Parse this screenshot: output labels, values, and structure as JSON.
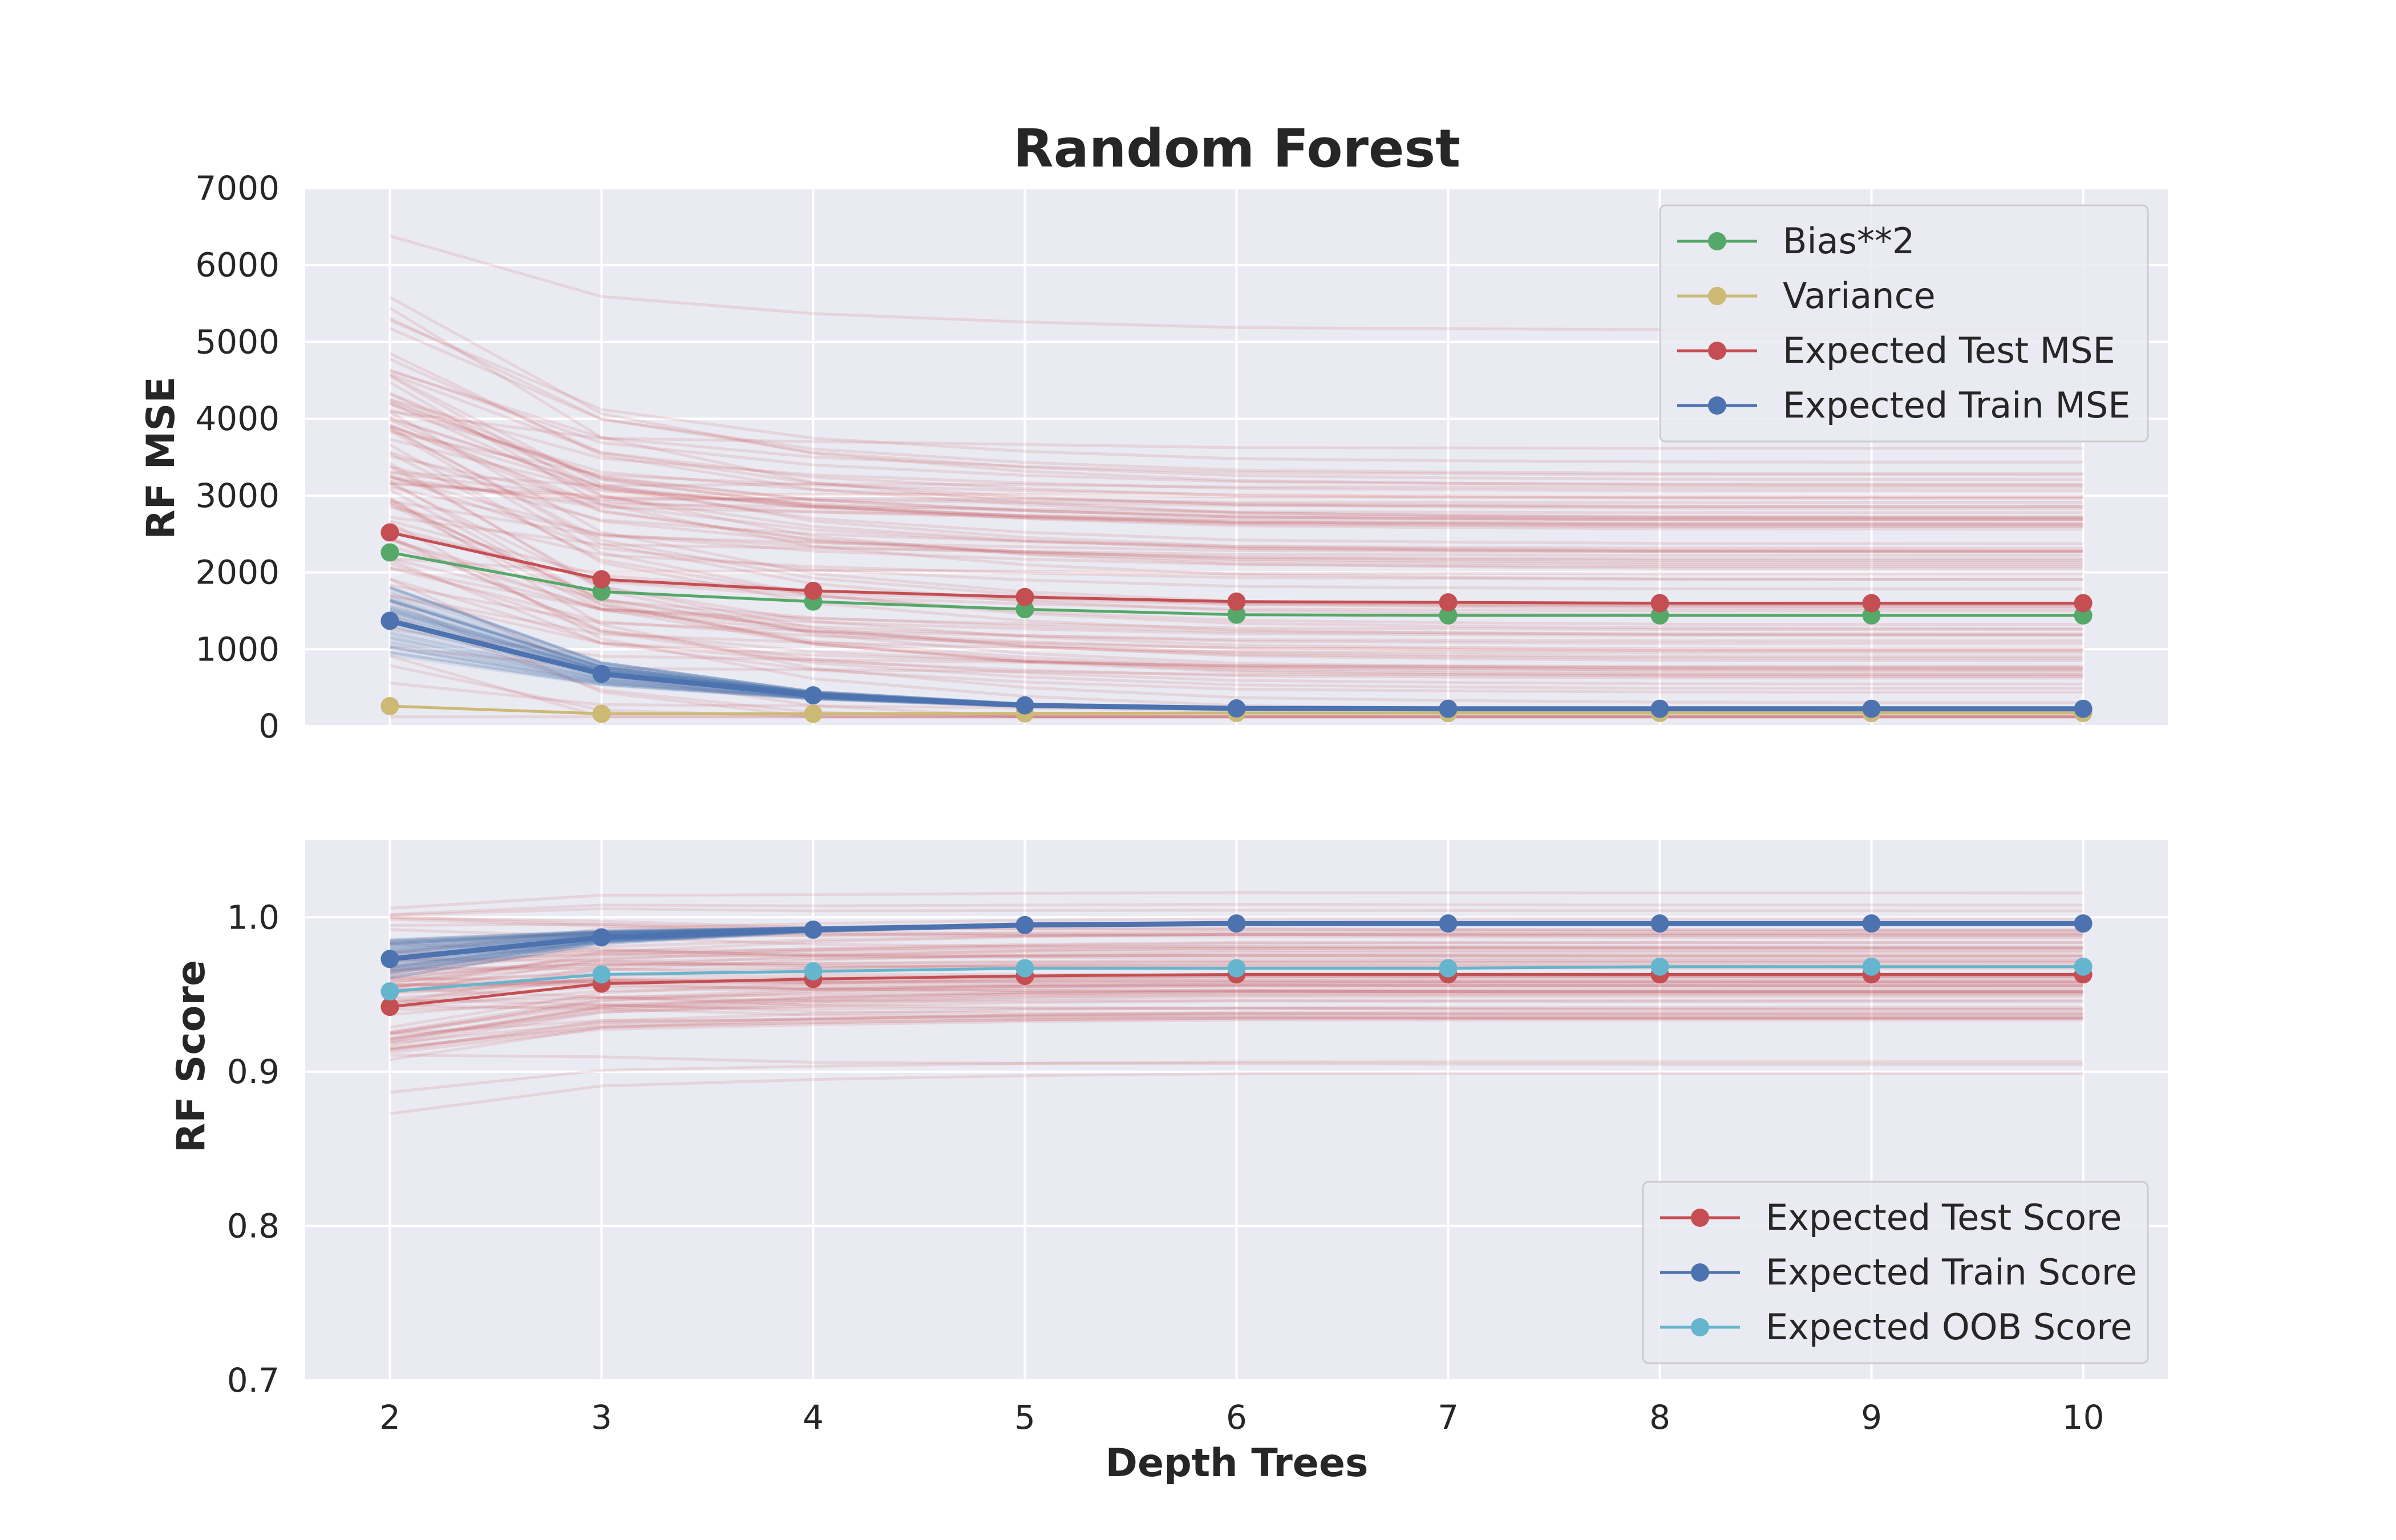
{
  "chart_data": [
    {
      "type": "line",
      "title": "Random Forest",
      "xlabel": "",
      "ylabel": "RF MSE",
      "x": [
        2,
        3,
        4,
        5,
        6,
        7,
        8,
        9,
        10
      ],
      "xlim": [
        1.6,
        10.4
      ],
      "ylim": [
        0,
        7000
      ],
      "yticks": [
        "0",
        "1000",
        "2000",
        "3000",
        "4000",
        "5000",
        "6000",
        "7000"
      ],
      "grid": true,
      "legend_position": "top-right",
      "series": [
        {
          "name": "Bias**2",
          "color": "#55a868",
          "values": [
            2260,
            1750,
            1620,
            1520,
            1450,
            1440,
            1440,
            1440,
            1440
          ]
        },
        {
          "name": "Variance",
          "color": "#ccb974",
          "values": [
            260,
            160,
            160,
            165,
            170,
            170,
            170,
            170,
            170
          ]
        },
        {
          "name": "Expected Test MSE",
          "color": "#c44e52",
          "values": [
            2520,
            1910,
            1760,
            1680,
            1620,
            1610,
            1600,
            1600,
            1600
          ]
        },
        {
          "name": "Expected Train MSE",
          "color": "#4c72b0",
          "values": [
            1370,
            680,
            400,
            270,
            230,
            225,
            225,
            225,
            225
          ]
        }
      ],
      "background_lines": {
        "test_runs_color": "#c44e52",
        "train_runs_color": "#4c72b0"
      }
    },
    {
      "type": "line",
      "title": "",
      "xlabel": "Depth Trees",
      "ylabel": "RF Score",
      "x": [
        2,
        3,
        4,
        5,
        6,
        7,
        8,
        9,
        10
      ],
      "xticks": [
        "2",
        "3",
        "4",
        "5",
        "6",
        "7",
        "8",
        "9",
        "10"
      ],
      "xlim": [
        1.6,
        10.4
      ],
      "ylim": [
        0.7,
        1.05
      ],
      "yticks": [
        "0.7",
        "0.8",
        "0.9",
        "1.0"
      ],
      "grid": true,
      "legend_position": "bottom-right",
      "series": [
        {
          "name": "Expected Test Score",
          "color": "#c44e52",
          "values": [
            0.942,
            0.957,
            0.96,
            0.962,
            0.963,
            0.963,
            0.963,
            0.963,
            0.963
          ]
        },
        {
          "name": "Expected Train Score",
          "color": "#4c72b0",
          "values": [
            0.973,
            0.987,
            0.992,
            0.995,
            0.996,
            0.996,
            0.996,
            0.996,
            0.996
          ]
        },
        {
          "name": "Expected OOB Score",
          "color": "#64b5cd",
          "values": [
            0.952,
            0.963,
            0.965,
            0.967,
            0.967,
            0.967,
            0.968,
            0.968,
            0.968
          ]
        }
      ]
    }
  ]
}
